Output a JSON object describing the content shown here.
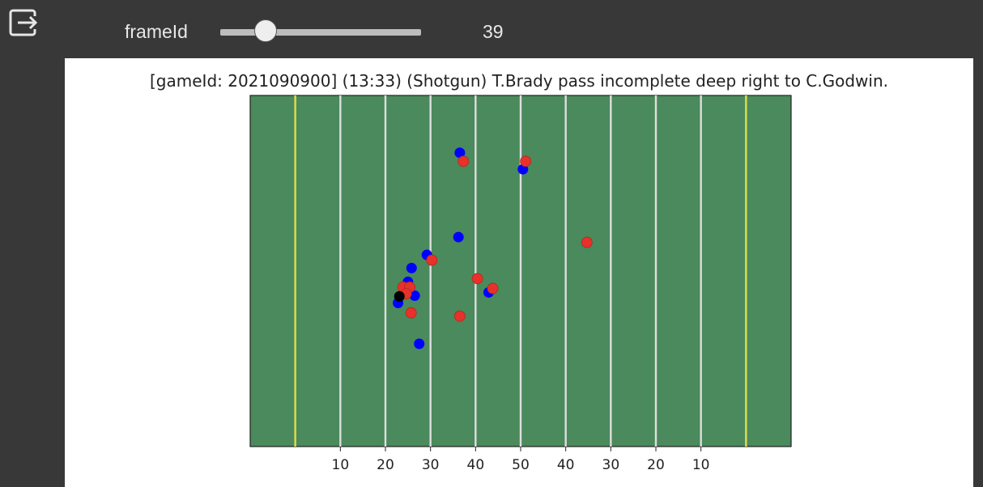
{
  "toolbar": {
    "exit_icon": "exit-to-app-icon"
  },
  "slider": {
    "label": "frameId",
    "value": "39",
    "fraction": 0.23
  },
  "colors": {
    "field": "#4a8a5c",
    "yard_line": "#dedede",
    "end_line": "#d8d84a",
    "team_home": "#0000ff",
    "team_away": "#e8312a",
    "football": "#000000"
  },
  "chart_data": {
    "type": "scatter",
    "title": "[gameId: 2021090900] (13:33) (Shotgun) T.Brady pass incomplete deep right to C.Godwin.",
    "xlabel": "",
    "ylabel": "",
    "xlim": [
      0,
      120
    ],
    "ylim": [
      0,
      53.3
    ],
    "grid": false,
    "yard_lines": [
      10,
      20,
      30,
      40,
      50,
      60,
      70,
      80,
      90,
      100,
      110
    ],
    "end_lines": [
      10,
      110
    ],
    "xtick_values": [
      20,
      30,
      40,
      50,
      60,
      70,
      80,
      90,
      100
    ],
    "xtick_labels": [
      "10",
      "20",
      "30",
      "40",
      "50",
      "40",
      "30",
      "20",
      "10"
    ],
    "series": [
      {
        "color": "blue",
        "points": [
          [
            46.5,
            44.6
          ],
          [
            60.5,
            42.1
          ],
          [
            46.2,
            31.8
          ],
          [
            39.2,
            29.1
          ],
          [
            35.8,
            27.1
          ],
          [
            35.0,
            25.0
          ],
          [
            36.5,
            22.9
          ],
          [
            32.8,
            21.8
          ],
          [
            52.9,
            23.4
          ],
          [
            37.5,
            15.6
          ]
        ]
      },
      {
        "color": "red",
        "points": [
          [
            47.3,
            43.3
          ],
          [
            61.1,
            43.3
          ],
          [
            74.7,
            31.0
          ],
          [
            40.3,
            28.3
          ],
          [
            50.4,
            25.5
          ],
          [
            53.8,
            24.0
          ],
          [
            33.9,
            24.2
          ],
          [
            35.4,
            24.2
          ],
          [
            34.6,
            23.2
          ],
          [
            35.7,
            20.3
          ],
          [
            46.5,
            19.8
          ]
        ]
      },
      {
        "color": "black",
        "points": [
          [
            33.1,
            22.8
          ]
        ]
      }
    ]
  }
}
